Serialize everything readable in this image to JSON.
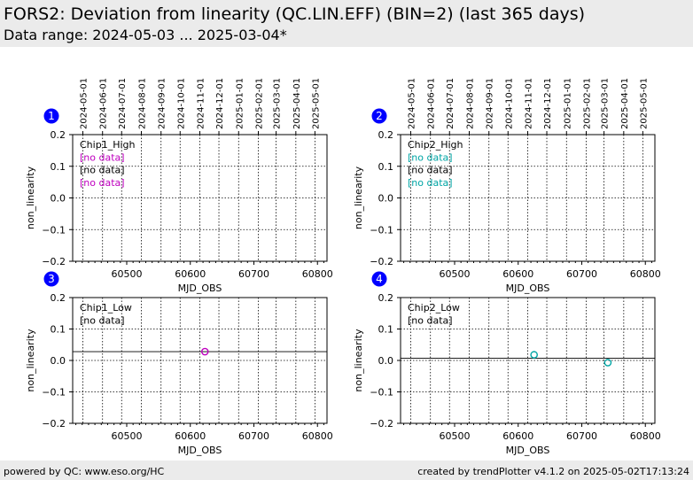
{
  "header": {
    "title": "FORS2: Deviation from linearity (QC.LIN.EFF) (BIN=2) (last 365 days)",
    "subtitle": "Data range: 2024-05-03 ... 2025-03-04*"
  },
  "footer": {
    "left": "powered by QC: www.eso.org/HC",
    "right": "created by trendPlotter v4.1.2 on 2025-05-02T17:13:24"
  },
  "colors": {
    "magenta": "#bf00bf",
    "cyan": "#00a5a5",
    "badge": "#0000ff"
  },
  "chart_data": [
    {
      "type": "scatter",
      "badge": "1",
      "xlabel": "MJD_OBS",
      "ylabel": "non_linearity",
      "xlim": [
        60415,
        60815
      ],
      "ylim": [
        -0.2,
        0.2
      ],
      "xticks": [
        60500,
        60600,
        60700,
        60800
      ],
      "yticks": [
        "0.2",
        "0.1",
        "0.0",
        "−0.1",
        "−0.2"
      ],
      "date_ticks": [
        "2024-05-01",
        "2024-06-01",
        "2024-07-01",
        "2024-08-01",
        "2024-09-01",
        "2024-10-01",
        "2024-11-01",
        "2024-12-01",
        "2025-01-01",
        "2025-02-01",
        "2025-03-01",
        "2025-04-01",
        "2025-05-01"
      ],
      "grid": true,
      "labels": [
        {
          "text": "Chip1_High",
          "color": "#000000"
        },
        {
          "text": "[no data]",
          "color": "#bf00bf"
        },
        {
          "text": "[no data]",
          "color": "#000000"
        },
        {
          "text": "[no data]",
          "color": "#bf00bf"
        }
      ],
      "hline": null,
      "series": [
        {
          "color": "#bf00bf",
          "x": [],
          "y": []
        }
      ]
    },
    {
      "type": "scatter",
      "badge": "2",
      "xlabel": "MJD_OBS",
      "ylabel": "non_linearity",
      "xlim": [
        60415,
        60815
      ],
      "ylim": [
        -0.2,
        0.2
      ],
      "xticks": [
        60500,
        60600,
        60700,
        60800
      ],
      "yticks": [
        "0.2",
        "0.1",
        "0.0",
        "−0.1",
        "−0.2"
      ],
      "date_ticks": [
        "2024-05-01",
        "2024-06-01",
        "2024-07-01",
        "2024-08-01",
        "2024-09-01",
        "2024-10-01",
        "2024-11-01",
        "2024-12-01",
        "2025-01-01",
        "2025-02-01",
        "2025-03-01",
        "2025-04-01",
        "2025-05-01"
      ],
      "grid": true,
      "labels": [
        {
          "text": "Chip2_High",
          "color": "#000000"
        },
        {
          "text": "[no data]",
          "color": "#00a5a5"
        },
        {
          "text": "[no data]",
          "color": "#000000"
        },
        {
          "text": "[no data]",
          "color": "#00a5a5"
        }
      ],
      "hline": null,
      "series": [
        {
          "color": "#00a5a5",
          "x": [],
          "y": []
        }
      ]
    },
    {
      "type": "scatter",
      "badge": "3",
      "xlabel": "MJD_OBS",
      "ylabel": "non_linearity",
      "xlim": [
        60415,
        60815
      ],
      "ylim": [
        -0.2,
        0.2
      ],
      "xticks": [
        60500,
        60600,
        60700,
        60800
      ],
      "yticks": [
        "0.2",
        "0.1",
        "0.0",
        "−0.1",
        "−0.2"
      ],
      "grid": true,
      "labels": [
        {
          "text": "Chip1_Low",
          "color": "#000000"
        },
        {
          "text": "[no data]",
          "color": "#000000"
        }
      ],
      "hline": 0.028,
      "series": [
        {
          "color": "#bf00bf",
          "x": [
            60623
          ],
          "y": [
            0.028
          ]
        }
      ]
    },
    {
      "type": "scatter",
      "badge": "4",
      "xlabel": "MJD_OBS",
      "ylabel": "non_linearity",
      "xlim": [
        60415,
        60815
      ],
      "ylim": [
        -0.2,
        0.2
      ],
      "xticks": [
        60500,
        60600,
        60700,
        60800
      ],
      "yticks": [
        "0.2",
        "0.1",
        "0.0",
        "−0.1",
        "−0.2"
      ],
      "grid": true,
      "labels": [
        {
          "text": "Chip2_Low",
          "color": "#000000"
        },
        {
          "text": "[no data]",
          "color": "#000000"
        }
      ],
      "hline": 0.007,
      "series": [
        {
          "color": "#00a5a5",
          "x": [
            60625,
            60741
          ],
          "y": [
            0.018,
            -0.007
          ]
        }
      ]
    }
  ]
}
